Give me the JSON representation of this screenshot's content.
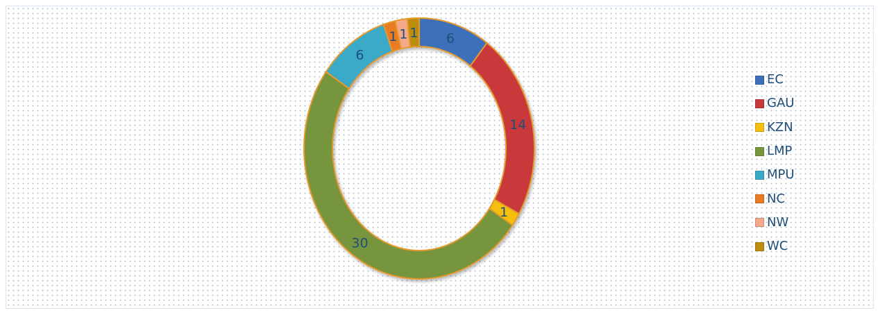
{
  "chart_data": {
    "type": "pie",
    "variant": "donut",
    "categories": [
      "EC",
      "GAU",
      "KZN",
      "LMP",
      "MPU",
      "NC",
      "NW",
      "WC"
    ],
    "values": [
      6,
      14,
      1,
      30,
      6,
      1,
      1,
      1
    ],
    "colors": [
      "#3d6fbb",
      "#c9393a",
      "#f5bf11",
      "#76953c",
      "#3ba9c8",
      "#e97b23",
      "#f3a98a",
      "#bd8e0d"
    ],
    "slice_border_color": "#e59a2e",
    "legend_position": "right",
    "grid": false
  }
}
